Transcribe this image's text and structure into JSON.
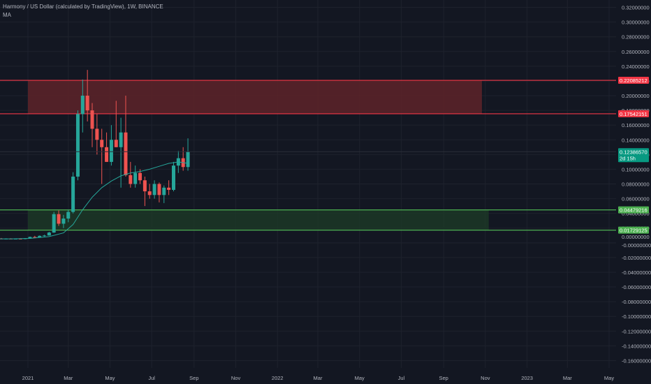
{
  "header": {
    "title": "Harmony / US Dollar (calculated by TradingView), 1W, BINANCE",
    "indicator": "MA"
  },
  "colors": {
    "background": "#131722",
    "grid": "#1e222d",
    "text": "#b2b5be",
    "up": "#26a69a",
    "down": "#ef5350",
    "ma": "#26a69a",
    "resistance_line": "#f23645",
    "resistance_fill": "#5e2329",
    "support_line": "#4caf50",
    "support_fill": "#1d3a27",
    "current_tag": "#089981"
  },
  "chart_data": {
    "type": "candlestick",
    "title": "Harmony / US Dollar (calculated by TradingView), 1W, BINANCE",
    "timeframe": "1W",
    "exchange": "BINANCE",
    "ylim": [
      -0.17,
      0.33
    ],
    "y_ticks": [
      "0.32000000",
      "0.30000000",
      "0.28000000",
      "0.26000000",
      "0.24000000",
      "0.22000000",
      "0.20000000",
      "0.18000000",
      "0.16000000",
      "0.14000000",
      "0.12000000",
      "0.10000000",
      "0.08000000",
      "0.06000000",
      "0.04000000",
      "0.02000000",
      "0.00000000",
      "-0.00000000",
      "-0.02000000",
      "-0.04000000",
      "-0.06000000",
      "-0.08000000",
      "-0.10000000",
      "-0.12000000",
      "-0.14000000",
      "-0.16000000"
    ],
    "y_tick_values": [
      0.32,
      0.3,
      0.28,
      0.26,
      0.24,
      0.22,
      0.2,
      0.18,
      0.16,
      0.14,
      0.12,
      0.1,
      0.08,
      0.06,
      0.04,
      0.02,
      0.0,
      -0.0,
      -0.02,
      -0.04,
      -0.06,
      -0.08,
      -0.1,
      -0.12,
      -0.14,
      -0.16
    ],
    "x_tick_labels": [
      "2021",
      "Mar",
      "May",
      "Jul",
      "Sep",
      "Nov",
      "2022",
      "Mar",
      "May",
      "Jul",
      "Sep",
      "Nov",
      "2023",
      "Mar",
      "May"
    ],
    "x_tick_dates": [
      "2021-01-01",
      "2021-03-01",
      "2021-05-01",
      "2021-07-01",
      "2021-09-01",
      "2021-11-01",
      "2022-01-01",
      "2022-03-01",
      "2022-05-01",
      "2022-07-01",
      "2022-09-01",
      "2022-11-01",
      "2023-01-01",
      "2023-03-01",
      "2023-05-01"
    ],
    "candles": [
      {
        "date": "2020-10-05",
        "open": 0.0055,
        "high": 0.0062,
        "low": 0.005,
        "close": 0.0056
      },
      {
        "date": "2020-10-12",
        "open": 0.0056,
        "high": 0.0061,
        "low": 0.005,
        "close": 0.0052
      },
      {
        "date": "2020-10-19",
        "open": 0.0052,
        "high": 0.006,
        "low": 0.0048,
        "close": 0.0055
      },
      {
        "date": "2020-10-26",
        "open": 0.0055,
        "high": 0.0059,
        "low": 0.0047,
        "close": 0.005
      },
      {
        "date": "2020-11-02",
        "open": 0.005,
        "high": 0.0058,
        "low": 0.0046,
        "close": 0.0054
      },
      {
        "date": "2020-11-09",
        "open": 0.0054,
        "high": 0.006,
        "low": 0.0049,
        "close": 0.0052
      },
      {
        "date": "2020-11-16",
        "open": 0.0052,
        "high": 0.0063,
        "low": 0.005,
        "close": 0.0058
      },
      {
        "date": "2020-11-23",
        "open": 0.0058,
        "high": 0.0066,
        "low": 0.005,
        "close": 0.0053
      },
      {
        "date": "2020-11-30",
        "open": 0.0053,
        "high": 0.0061,
        "low": 0.0049,
        "close": 0.0057
      },
      {
        "date": "2020-12-07",
        "open": 0.0057,
        "high": 0.0062,
        "low": 0.005,
        "close": 0.0052
      },
      {
        "date": "2020-12-14",
        "open": 0.0052,
        "high": 0.006,
        "low": 0.005,
        "close": 0.0056
      },
      {
        "date": "2020-12-21",
        "open": 0.0056,
        "high": 0.0061,
        "low": 0.0047,
        "close": 0.0051
      },
      {
        "date": "2020-12-28",
        "open": 0.0051,
        "high": 0.0064,
        "low": 0.0049,
        "close": 0.0062
      },
      {
        "date": "2021-01-04",
        "open": 0.0062,
        "high": 0.0085,
        "low": 0.0055,
        "close": 0.008
      },
      {
        "date": "2021-01-11",
        "open": 0.008,
        "high": 0.0095,
        "low": 0.0068,
        "close": 0.0075
      },
      {
        "date": "2021-01-18",
        "open": 0.0075,
        "high": 0.01,
        "low": 0.007,
        "close": 0.0095
      },
      {
        "date": "2021-01-25",
        "open": 0.0095,
        "high": 0.011,
        "low": 0.0085,
        "close": 0.01
      },
      {
        "date": "2021-02-01",
        "open": 0.01,
        "high": 0.015,
        "low": 0.0098,
        "close": 0.014
      },
      {
        "date": "2021-02-08",
        "open": 0.014,
        "high": 0.042,
        "low": 0.0135,
        "close": 0.039
      },
      {
        "date": "2021-02-15",
        "open": 0.039,
        "high": 0.044,
        "low": 0.023,
        "close": 0.026
      },
      {
        "date": "2021-02-22",
        "open": 0.026,
        "high": 0.038,
        "low": 0.02,
        "close": 0.033
      },
      {
        "date": "2021-03-01",
        "open": 0.033,
        "high": 0.045,
        "low": 0.028,
        "close": 0.042
      },
      {
        "date": "2021-03-08",
        "open": 0.042,
        "high": 0.096,
        "low": 0.04,
        "close": 0.09
      },
      {
        "date": "2021-03-15",
        "open": 0.09,
        "high": 0.18,
        "low": 0.085,
        "close": 0.175
      },
      {
        "date": "2021-03-22",
        "open": 0.175,
        "high": 0.222,
        "low": 0.15,
        "close": 0.2
      },
      {
        "date": "2021-03-29",
        "open": 0.2,
        "high": 0.235,
        "low": 0.165,
        "close": 0.18
      },
      {
        "date": "2021-04-05",
        "open": 0.18,
        "high": 0.19,
        "low": 0.13,
        "close": 0.155
      },
      {
        "date": "2021-04-12",
        "open": 0.155,
        "high": 0.175,
        "low": 0.12,
        "close": 0.14
      },
      {
        "date": "2021-04-19",
        "open": 0.14,
        "high": 0.155,
        "low": 0.08,
        "close": 0.13
      },
      {
        "date": "2021-04-26",
        "open": 0.13,
        "high": 0.15,
        "low": 0.11,
        "close": 0.11
      },
      {
        "date": "2021-05-03",
        "open": 0.11,
        "high": 0.16,
        "low": 0.105,
        "close": 0.14
      },
      {
        "date": "2021-05-10",
        "open": 0.14,
        "high": 0.193,
        "low": 0.13,
        "close": 0.13
      },
      {
        "date": "2021-05-17",
        "open": 0.13,
        "high": 0.17,
        "low": 0.075,
        "close": 0.15
      },
      {
        "date": "2021-05-24",
        "open": 0.15,
        "high": 0.2,
        "low": 0.09,
        "close": 0.092
      },
      {
        "date": "2021-05-31",
        "open": 0.092,
        "high": 0.11,
        "low": 0.075,
        "close": 0.08
      },
      {
        "date": "2021-06-07",
        "open": 0.08,
        "high": 0.105,
        "low": 0.075,
        "close": 0.095
      },
      {
        "date": "2021-06-14",
        "open": 0.095,
        "high": 0.1,
        "low": 0.08,
        "close": 0.085
      },
      {
        "date": "2021-06-21",
        "open": 0.085,
        "high": 0.09,
        "low": 0.05,
        "close": 0.07
      },
      {
        "date": "2021-06-28",
        "open": 0.07,
        "high": 0.08,
        "low": 0.06,
        "close": 0.065
      },
      {
        "date": "2021-07-05",
        "open": 0.065,
        "high": 0.085,
        "low": 0.06,
        "close": 0.08
      },
      {
        "date": "2021-07-12",
        "open": 0.08,
        "high": 0.082,
        "low": 0.055,
        "close": 0.065
      },
      {
        "date": "2021-07-19",
        "open": 0.065,
        "high": 0.078,
        "low": 0.054,
        "close": 0.075
      },
      {
        "date": "2021-07-26",
        "open": 0.075,
        "high": 0.085,
        "low": 0.065,
        "close": 0.072
      },
      {
        "date": "2021-08-02",
        "open": 0.072,
        "high": 0.11,
        "low": 0.07,
        "close": 0.105
      },
      {
        "date": "2021-08-09",
        "open": 0.105,
        "high": 0.125,
        "low": 0.095,
        "close": 0.115
      },
      {
        "date": "2021-08-16",
        "open": 0.115,
        "high": 0.13,
        "low": 0.098,
        "close": 0.103
      },
      {
        "date": "2021-08-23",
        "open": 0.103,
        "high": 0.142,
        "low": 0.098,
        "close": 0.124
      }
    ],
    "moving_average": [
      {
        "date": "2020-10-05",
        "value": 0.0055
      },
      {
        "date": "2020-11-02",
        "value": 0.0054
      },
      {
        "date": "2020-12-07",
        "value": 0.0054
      },
      {
        "date": "2021-01-04",
        "value": 0.006
      },
      {
        "date": "2021-02-01",
        "value": 0.0085
      },
      {
        "date": "2021-02-22",
        "value": 0.0135
      },
      {
        "date": "2021-03-08",
        "value": 0.025
      },
      {
        "date": "2021-03-22",
        "value": 0.045
      },
      {
        "date": "2021-04-05",
        "value": 0.062
      },
      {
        "date": "2021-04-19",
        "value": 0.075
      },
      {
        "date": "2021-05-03",
        "value": 0.084
      },
      {
        "date": "2021-05-17",
        "value": 0.091
      },
      {
        "date": "2021-05-31",
        "value": 0.095
      },
      {
        "date": "2021-06-14",
        "value": 0.097
      },
      {
        "date": "2021-06-28",
        "value": 0.1
      },
      {
        "date": "2021-07-12",
        "value": 0.104
      },
      {
        "date": "2021-07-26",
        "value": 0.108
      },
      {
        "date": "2021-08-09",
        "value": 0.11
      },
      {
        "date": "2021-08-23",
        "value": 0.108
      }
    ],
    "zones": [
      {
        "name": "resistance",
        "top": 0.22085212,
        "bottom": 0.17542151,
        "start": "2021-01-01",
        "end": "2022-10-27",
        "top_label": "0.22085212",
        "bottom_label": "0.17542151"
      },
      {
        "name": "support",
        "top": 0.04479216,
        "bottom": 0.01729125,
        "start": "2021-01-01",
        "end": "2022-11-06",
        "top_label": "0.04479216",
        "bottom_label": "0.01729125"
      }
    ],
    "last_price": {
      "value": 0.1238657,
      "label": "0.12386570",
      "countdown": "2d 15h"
    }
  }
}
